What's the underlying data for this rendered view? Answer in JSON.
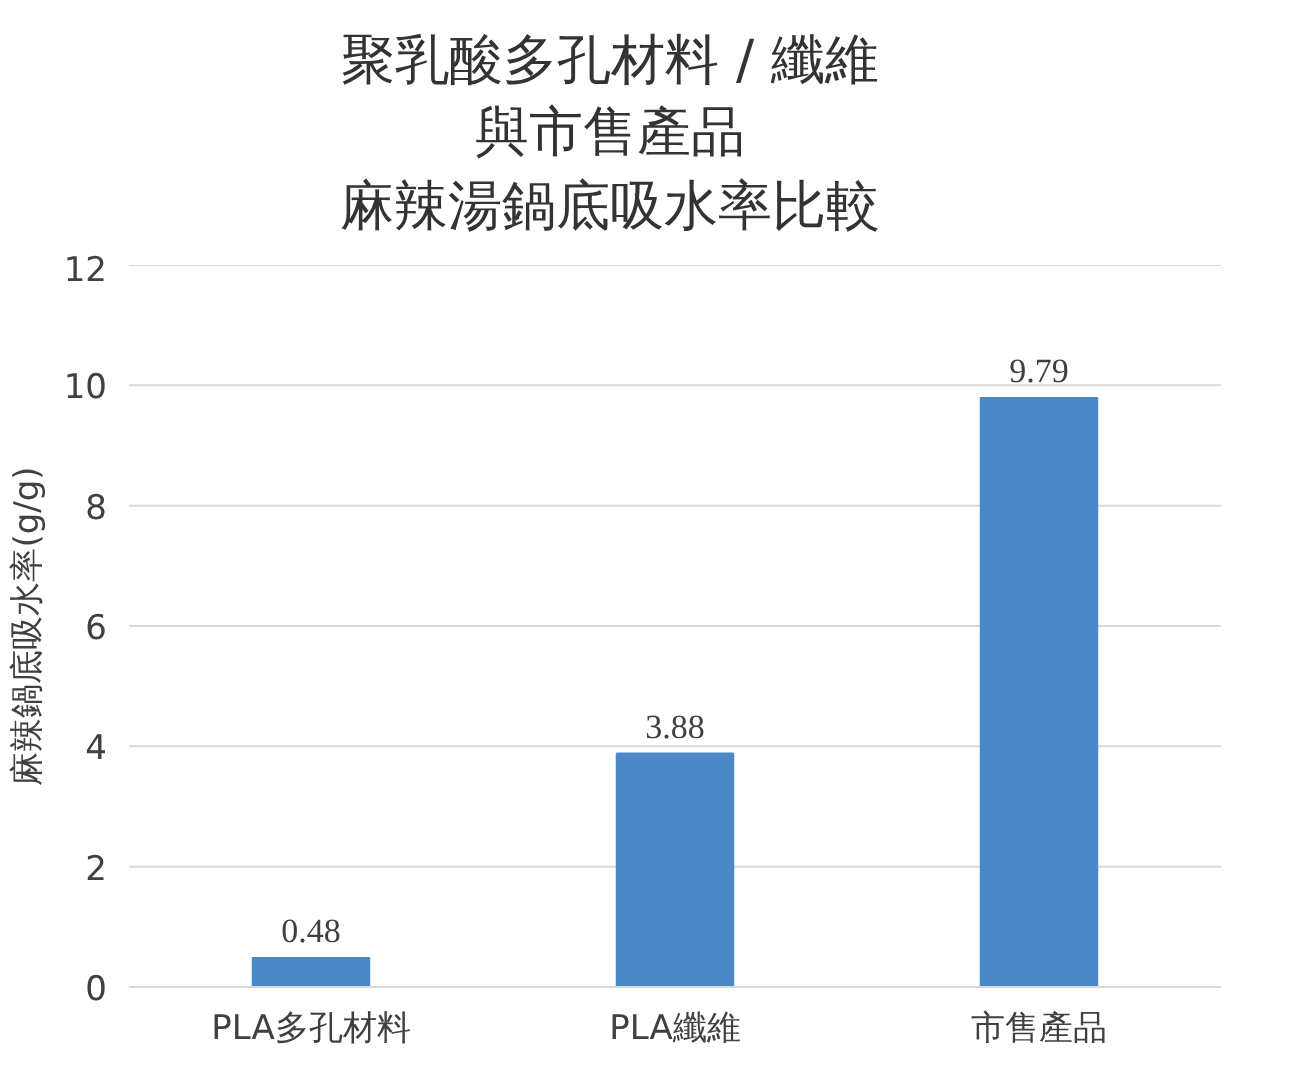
{
  "chart_data": {
    "type": "bar",
    "title": "聚乳酸多孔材料 / 纖維與市售產品",
    "subtitle": "麻辣湯鍋底吸水率比較",
    "ylabel": "麻辣鍋底吸水率(g/g)",
    "categories": [
      "PLA多孔材料",
      "PLA纖維",
      "市售產品"
    ],
    "values": [
      0.48,
      3.88,
      9.79
    ],
    "color": "#4a88c7",
    "ylim": [
      0,
      12
    ],
    "yticks": [
      0,
      2,
      4,
      6,
      8,
      10,
      12
    ],
    "grid": "y",
    "data_labels": true
  }
}
